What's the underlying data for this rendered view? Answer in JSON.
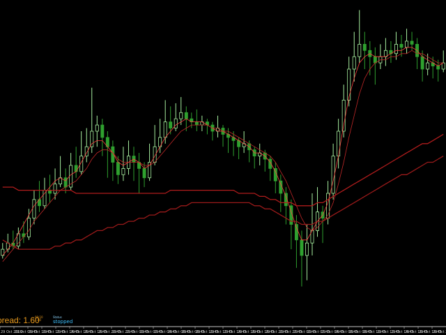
{
  "chart_data": {
    "type": "candlestick",
    "ylim": [
      0,
      100
    ],
    "series": [
      {
        "name": "",
        "values": [
          [
            20,
            22,
            24,
            19
          ],
          [
            22,
            24,
            27,
            21
          ],
          [
            24,
            23,
            28,
            22
          ],
          [
            23,
            27,
            29,
            22
          ],
          [
            27,
            26,
            31,
            24
          ],
          [
            26,
            32,
            35,
            25
          ],
          [
            32,
            38,
            41,
            30
          ],
          [
            38,
            36,
            44,
            34
          ],
          [
            36,
            41,
            45,
            35
          ],
          [
            41,
            40,
            46,
            37
          ],
          [
            40,
            43,
            48,
            38
          ],
          [
            43,
            45,
            52,
            42
          ],
          [
            45,
            42,
            48,
            40
          ],
          [
            42,
            49,
            53,
            41
          ],
          [
            49,
            47,
            55,
            45
          ],
          [
            47,
            52,
            60,
            46
          ],
          [
            52,
            55,
            61,
            50
          ],
          [
            55,
            60,
            74,
            53
          ],
          [
            60,
            62,
            65,
            55
          ],
          [
            62,
            58,
            64,
            52
          ],
          [
            58,
            55,
            60,
            45
          ],
          [
            55,
            50,
            57,
            44
          ],
          [
            50,
            46,
            52,
            43
          ],
          [
            46,
            48,
            55,
            44
          ],
          [
            48,
            52,
            57,
            46
          ],
          [
            52,
            50,
            55,
            44
          ],
          [
            50,
            48,
            53,
            40
          ],
          [
            48,
            45,
            50,
            42
          ],
          [
            45,
            50,
            56,
            44
          ],
          [
            50,
            55,
            62,
            49
          ],
          [
            55,
            58,
            64,
            53
          ],
          [
            58,
            63,
            70,
            56
          ],
          [
            63,
            61,
            68,
            59
          ],
          [
            61,
            64,
            69,
            60
          ],
          [
            64,
            66,
            71,
            62
          ],
          [
            66,
            64,
            68,
            60
          ],
          [
            64,
            63,
            66,
            61
          ],
          [
            63,
            62,
            67,
            60
          ],
          [
            62,
            63,
            65,
            60
          ],
          [
            63,
            62,
            64,
            59
          ],
          [
            62,
            60,
            63,
            57
          ],
          [
            60,
            61,
            65,
            58
          ],
          [
            61,
            59,
            62,
            55
          ],
          [
            59,
            58,
            61,
            53
          ],
          [
            58,
            57,
            60,
            52
          ],
          [
            57,
            55,
            58,
            51
          ],
          [
            55,
            56,
            60,
            53
          ],
          [
            56,
            54,
            57,
            50
          ],
          [
            54,
            52,
            55,
            48
          ],
          [
            52,
            53,
            56,
            49
          ],
          [
            53,
            51,
            54,
            47
          ],
          [
            51,
            48,
            52,
            44
          ],
          [
            48,
            44,
            50,
            40
          ],
          [
            44,
            40,
            46,
            34
          ],
          [
            40,
            36,
            42,
            30
          ],
          [
            36,
            30,
            38,
            22
          ],
          [
            30,
            25,
            33,
            16
          ],
          [
            25,
            20,
            28,
            10
          ],
          [
            20,
            24,
            30,
            12
          ],
          [
            24,
            28,
            40,
            20
          ],
          [
            28,
            34,
            42,
            26
          ],
          [
            34,
            32,
            36,
            24
          ],
          [
            32,
            40,
            44,
            30
          ],
          [
            40,
            52,
            56,
            38
          ],
          [
            52,
            60,
            64,
            48
          ],
          [
            60,
            70,
            75,
            58
          ],
          [
            70,
            80,
            84,
            68
          ],
          [
            80,
            84,
            92,
            76
          ],
          [
            84,
            88,
            99,
            82
          ],
          [
            88,
            86,
            92,
            80
          ],
          [
            86,
            84,
            89,
            78
          ],
          [
            84,
            82,
            87,
            75
          ],
          [
            82,
            84,
            88,
            80
          ],
          [
            84,
            86,
            90,
            81
          ],
          [
            86,
            85,
            89,
            82
          ],
          [
            85,
            88,
            92,
            83
          ],
          [
            88,
            87,
            91,
            84
          ],
          [
            87,
            89,
            93,
            85
          ],
          [
            89,
            88,
            92,
            86
          ],
          [
            88,
            84,
            90,
            80
          ],
          [
            84,
            80,
            86,
            76
          ],
          [
            80,
            82,
            85,
            78
          ],
          [
            82,
            81,
            84,
            77
          ],
          [
            81,
            80,
            83,
            76
          ],
          [
            80,
            82,
            86,
            79
          ]
        ]
      },
      {
        "name": "",
        "values": [
          20,
          22,
          24,
          27,
          30,
          33,
          36,
          38,
          40,
          42,
          44,
          45,
          44,
          46,
          47,
          50,
          53,
          56,
          57,
          57,
          55,
          53,
          50,
          49,
          50,
          51,
          50,
          48,
          49,
          52,
          55,
          58,
          60,
          62,
          63,
          64,
          63,
          63,
          63,
          62,
          61,
          60,
          60,
          59,
          58,
          57,
          56,
          55,
          53,
          53,
          52,
          50,
          47,
          43,
          39,
          34,
          29,
          25,
          25,
          28,
          31,
          33,
          37,
          44,
          52,
          62,
          71,
          77,
          82,
          84,
          85,
          84,
          84,
          84,
          85,
          86,
          86,
          87,
          87,
          86,
          84,
          83,
          82,
          81,
          82
        ]
      },
      {
        "name": "",
        "values": [
          18,
          20,
          22,
          24,
          26,
          28,
          31,
          33,
          35,
          37,
          39,
          41,
          42,
          43,
          44,
          46,
          48,
          51,
          53,
          54,
          54,
          53,
          51,
          50,
          50,
          50,
          50,
          49,
          49,
          50,
          52,
          54,
          56,
          58,
          60,
          61,
          62,
          62,
          62,
          62,
          61,
          61,
          60,
          60,
          59,
          58,
          57,
          56,
          55,
          54,
          53,
          52,
          50,
          47,
          44,
          40,
          36,
          32,
          29,
          28,
          29,
          31,
          33,
          37,
          43,
          50,
          58,
          65,
          72,
          77,
          80,
          82,
          83,
          83,
          84,
          84,
          85,
          85,
          86,
          85,
          85,
          84,
          83,
          82,
          82
        ]
      },
      {
        "name": "",
        "values": [
          42,
          42,
          42,
          41,
          41,
          41,
          41,
          41,
          41,
          41,
          41,
          41,
          41,
          41,
          40,
          40,
          40,
          40,
          40,
          40,
          40,
          40,
          40,
          40,
          40,
          40,
          40,
          40,
          40,
          40,
          40,
          40,
          41,
          41,
          41,
          41,
          41,
          41,
          41,
          41,
          41,
          41,
          41,
          41,
          41,
          40,
          40,
          40,
          40,
          39,
          39,
          38,
          38,
          37,
          37,
          37,
          36,
          36,
          36,
          36,
          37,
          37,
          38,
          39,
          40,
          41,
          42,
          43,
          44,
          45,
          46,
          47,
          48,
          49,
          50,
          51,
          52,
          53,
          54,
          55,
          56,
          56,
          57,
          58,
          59
        ]
      },
      {
        "name": "",
        "values": [
          25,
          24,
          23,
          22,
          22,
          22,
          22,
          22,
          22,
          22,
          23,
          23,
          24,
          24,
          25,
          25,
          26,
          27,
          28,
          28,
          29,
          29,
          30,
          30,
          31,
          31,
          32,
          32,
          33,
          33,
          34,
          34,
          35,
          35,
          36,
          36,
          37,
          37,
          37,
          37,
          37,
          37,
          37,
          37,
          37,
          37,
          37,
          37,
          36,
          36,
          35,
          35,
          34,
          33,
          32,
          31,
          31,
          30,
          30,
          30,
          31,
          31,
          32,
          33,
          34,
          35,
          36,
          37,
          38,
          39,
          40,
          41,
          42,
          43,
          44,
          45,
          46,
          46,
          47,
          48,
          49,
          50,
          50,
          51,
          52
        ]
      }
    ],
    "x_labels": [
      "29 Oct 2019",
      "29 Oct 09:45",
      "29 Oct 10:45",
      "29 Oct 12:45",
      "29 Oct 14:45",
      "29 Oct 16:45",
      "29 Oct 18:45",
      "29 Oct 20:45",
      "29 Oct 22:45",
      "29 Oct 00:45",
      "29 Oct 02:45",
      "29 Oct 04:45",
      "29 Oct 06:45",
      "29 Oct 08:45",
      "29 Oct 10:45",
      "29 Oct 12:45",
      "29 Oct 14:45",
      "29 Oct 16:45",
      "29 Oct 18:45",
      "29 Oct 20:45",
      "29 Oct 22:45",
      "29 Oct 00:45",
      "29 Oct 02:45",
      "29 Oct 04:45",
      "29 Oct 06:45",
      "29 Oct 08:45",
      "29 Oct 10:45",
      "29 Oct 12:45",
      "29 Oct 14:45",
      "29 Oct 16:45",
      "29 Oct 18:45",
      "29 Oct 20:45"
    ],
    "grid": false,
    "colors": {
      "background": "#000000",
      "bull": "#a8f0a0",
      "bear": "#2fa02f",
      "ma_fast": "#ff4040",
      "ma_mid": "#c02828",
      "ma_slow": "#b01c1c",
      "ma_long": "#9a1a1a",
      "axis": "#c8c8c8"
    }
  },
  "hud": {
    "spread": "pread: 1.60",
    "mini_top": "00:10",
    "mini_bot": "1.80",
    "status_caption": "Status",
    "status_value": "stopped"
  }
}
